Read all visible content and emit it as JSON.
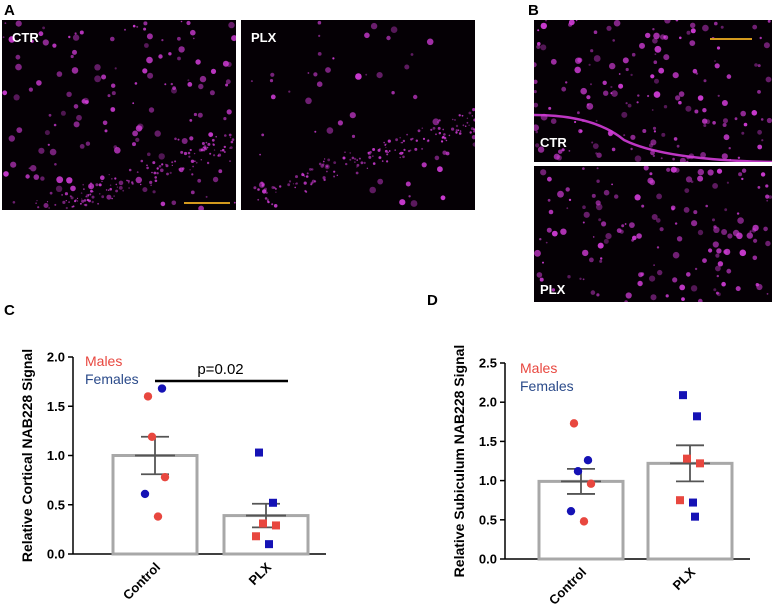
{
  "panels": {
    "a": "A",
    "b": "B",
    "c": "C",
    "d": "D"
  },
  "microscopy": {
    "a_left_label": "CTR",
    "a_right_label": "PLX",
    "b_top_label": "CTR",
    "b_bottom_label": "PLX",
    "stain_color": "#d23cd8",
    "scale_bar_color": "#d49a1e"
  },
  "colors": {
    "male": "#e8473f",
    "female": "#1512b5",
    "bar_edge": "#a8a8a8",
    "text": "#000000"
  },
  "chart_data": [
    {
      "type": "bar",
      "panel": "C",
      "title": "",
      "ylabel": "Relative Cortical NAB228 Signal",
      "xlabel": "",
      "categories": [
        "Control",
        "PLX"
      ],
      "values": [
        1.0,
        0.39
      ],
      "sem": [
        0.19,
        0.12
      ],
      "ylim": [
        0,
        2.0
      ],
      "yticks": [
        "0.0",
        "0.5",
        "1.0",
        "1.5",
        "2.0"
      ],
      "legend": [
        "Males",
        "Females"
      ],
      "annotation": "p=0.02",
      "points": [
        {
          "group": "Control",
          "sex": "Males",
          "value": 1.6
        },
        {
          "group": "Control",
          "sex": "Females",
          "value": 1.68
        },
        {
          "group": "Control",
          "sex": "Males",
          "value": 1.19
        },
        {
          "group": "Control",
          "sex": "Males",
          "value": 0.78
        },
        {
          "group": "Control",
          "sex": "Females",
          "value": 0.61
        },
        {
          "group": "Control",
          "sex": "Males",
          "value": 0.38
        },
        {
          "group": "PLX",
          "sex": "Females",
          "value": 1.03
        },
        {
          "group": "PLX",
          "sex": "Females",
          "value": 0.52
        },
        {
          "group": "PLX",
          "sex": "Males",
          "value": 0.31
        },
        {
          "group": "PLX",
          "sex": "Males",
          "value": 0.29
        },
        {
          "group": "PLX",
          "sex": "Males",
          "value": 0.18
        },
        {
          "group": "PLX",
          "sex": "Females",
          "value": 0.1
        }
      ]
    },
    {
      "type": "bar",
      "panel": "D",
      "title": "",
      "ylabel": "Relative Subiculum NAB228 Signal",
      "xlabel": "",
      "categories": [
        "Control",
        "PLX"
      ],
      "values": [
        0.99,
        1.22
      ],
      "sem": [
        0.16,
        0.23
      ],
      "ylim": [
        0,
        2.5
      ],
      "yticks": [
        "0.0",
        "0.5",
        "1.0",
        "1.5",
        "2.0",
        "2.5"
      ],
      "legend": [
        "Males",
        "Females"
      ],
      "annotation": "",
      "points": [
        {
          "group": "Control",
          "sex": "Males",
          "value": 1.73
        },
        {
          "group": "Control",
          "sex": "Females",
          "value": 1.26
        },
        {
          "group": "Control",
          "sex": "Females",
          "value": 1.12
        },
        {
          "group": "Control",
          "sex": "Males",
          "value": 0.96
        },
        {
          "group": "Control",
          "sex": "Females",
          "value": 0.61
        },
        {
          "group": "Control",
          "sex": "Males",
          "value": 0.48
        },
        {
          "group": "PLX",
          "sex": "Females",
          "value": 2.09
        },
        {
          "group": "PLX",
          "sex": "Females",
          "value": 1.82
        },
        {
          "group": "PLX",
          "sex": "Males",
          "value": 1.28
        },
        {
          "group": "PLX",
          "sex": "Males",
          "value": 1.22
        },
        {
          "group": "PLX",
          "sex": "Males",
          "value": 0.75
        },
        {
          "group": "PLX",
          "sex": "Females",
          "value": 0.72
        },
        {
          "group": "PLX",
          "sex": "Females",
          "value": 0.54
        }
      ]
    }
  ]
}
